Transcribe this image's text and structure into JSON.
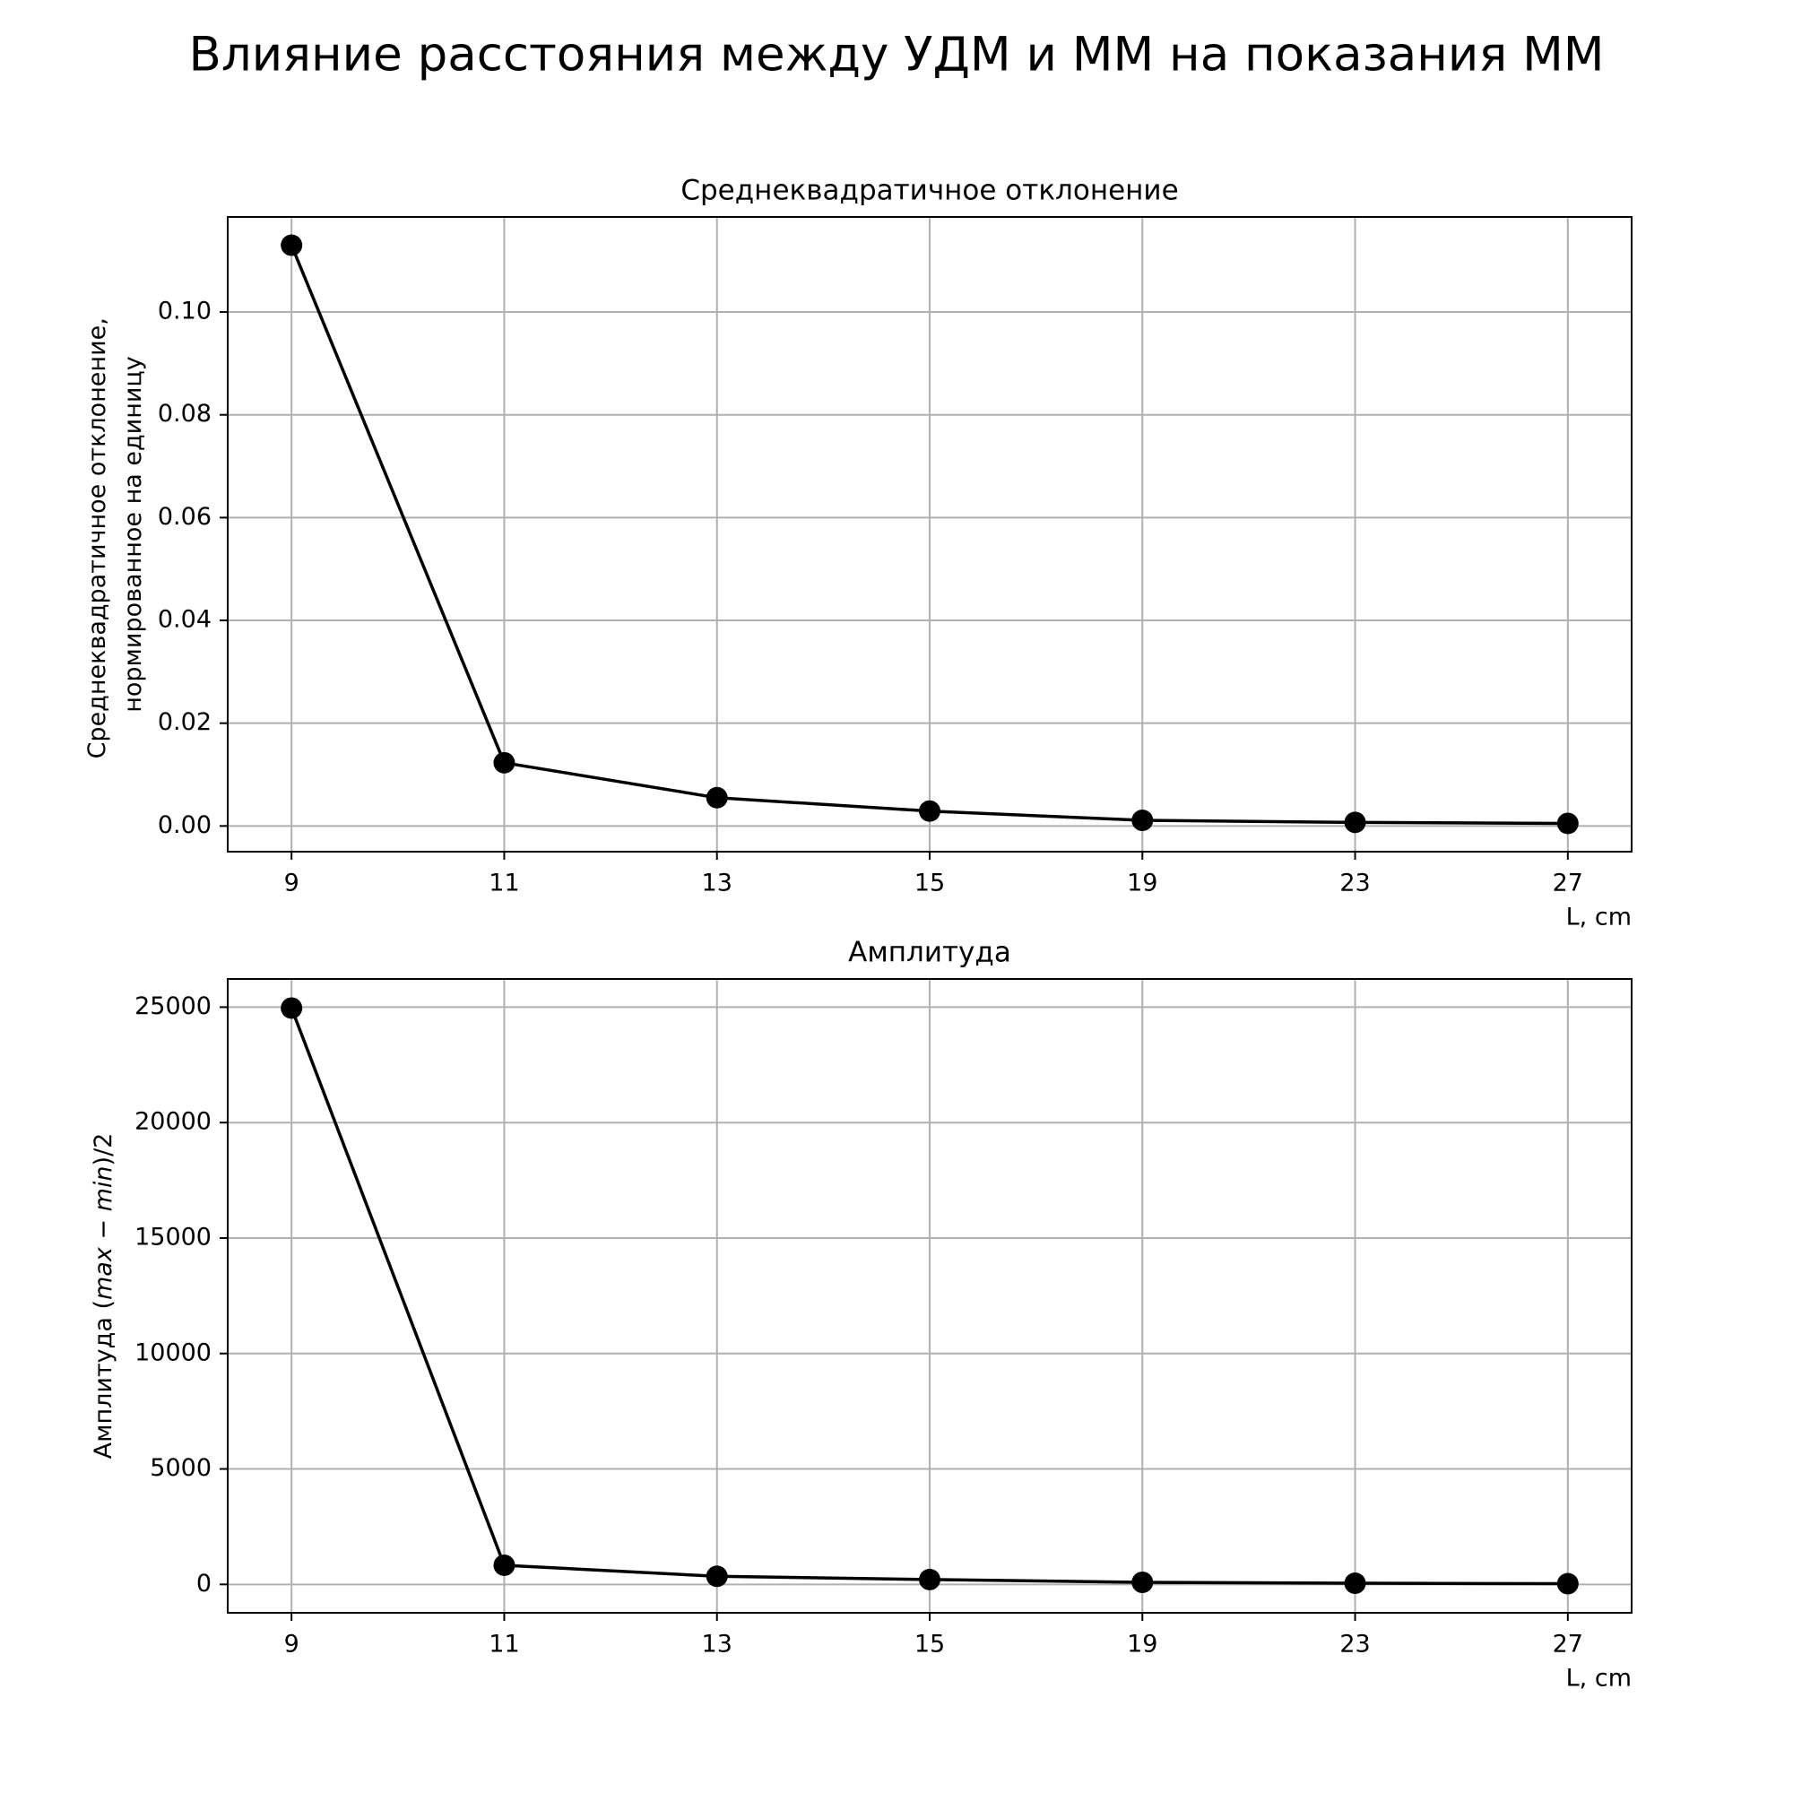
{
  "figure": {
    "title": "Влияние расстояния между УДМ и ММ на показания ММ"
  },
  "chart_data": [
    {
      "type": "line",
      "title": "Среднеквадратичное отклонение",
      "xlabel": "L, cm",
      "ylabel_lines": [
        "Среднеквадратичное отклонение,",
        "нормированное на единицу"
      ],
      "categories": [
        "9",
        "11",
        "13",
        "15",
        "19",
        "23",
        "27"
      ],
      "x_axis": "categorical, evenly spaced",
      "series": [
        {
          "values": [
            0.113,
            0.0123,
            0.0055,
            0.0029,
            0.0011,
            0.0007,
            0.0005
          ],
          "color": "#000000",
          "marker": "circle"
        }
      ],
      "ylim": [
        -0.005,
        0.1185
      ],
      "yticks": [
        0.0,
        0.02,
        0.04,
        0.06,
        0.08,
        0.1
      ],
      "ytick_labels": [
        "0.00",
        "0.02",
        "0.04",
        "0.06",
        "0.08",
        "0.10"
      ],
      "grid": true,
      "legend": "none"
    },
    {
      "type": "line",
      "title": "Амплитуда",
      "xlabel": "L, cm",
      "ylabel_parts": {
        "pre": "Амплитуда (",
        "max": "max",
        "minus": " − ",
        "min": "min",
        "post": ")/2"
      },
      "categories": [
        "9",
        "11",
        "13",
        "15",
        "19",
        "23",
        "27"
      ],
      "x_axis": "categorical, evenly spaced",
      "series": [
        {
          "values": [
            24960,
            830,
            350,
            210,
            90,
            50,
            30
          ],
          "color": "#000000",
          "marker": "circle"
        }
      ],
      "ylim": [
        -1230,
        26220
      ],
      "yticks": [
        0,
        5000,
        10000,
        15000,
        20000,
        25000
      ],
      "ytick_labels": [
        "0",
        "5000",
        "10000",
        "15000",
        "20000",
        "25000"
      ],
      "grid": true,
      "legend": "none"
    }
  ]
}
